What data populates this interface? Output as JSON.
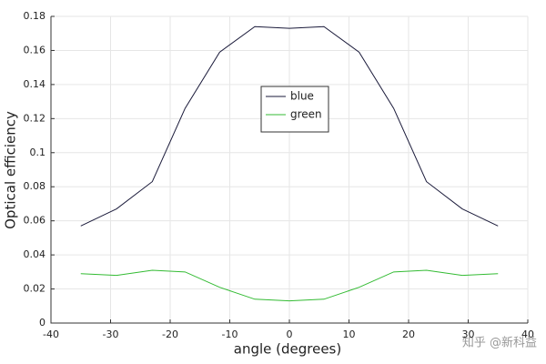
{
  "chart_data": {
    "type": "line",
    "xlabel": "angle (degrees)",
    "ylabel": "Optical efficiency",
    "x": [
      -35,
      -29,
      -23,
      -17.5,
      -11.7,
      -5.8,
      0,
      5.8,
      11.7,
      17.5,
      23,
      29,
      35
    ],
    "series": [
      {
        "name": "blue",
        "color": "#1a1a3a",
        "values": [
          0.057,
          0.067,
          0.083,
          0.126,
          0.159,
          0.174,
          0.173,
          0.174,
          0.159,
          0.126,
          0.083,
          0.067,
          0.057
        ]
      },
      {
        "name": "green",
        "color": "#33bb33",
        "values": [
          0.029,
          0.028,
          0.031,
          0.03,
          0.021,
          0.014,
          0.013,
          0.014,
          0.021,
          0.03,
          0.031,
          0.028,
          0.029
        ]
      }
    ],
    "xlim": [
      -40,
      40
    ],
    "xticks": [
      -40,
      -30,
      -20,
      -10,
      0,
      10,
      20,
      30,
      40
    ],
    "ylim": [
      0,
      0.18
    ],
    "yticks": [
      0,
      0.02,
      0.04,
      0.06,
      0.08,
      0.1,
      0.12,
      0.14,
      0.16,
      0.18
    ],
    "grid": true,
    "legend": "center"
  },
  "watermark": "知乎 @新科益"
}
